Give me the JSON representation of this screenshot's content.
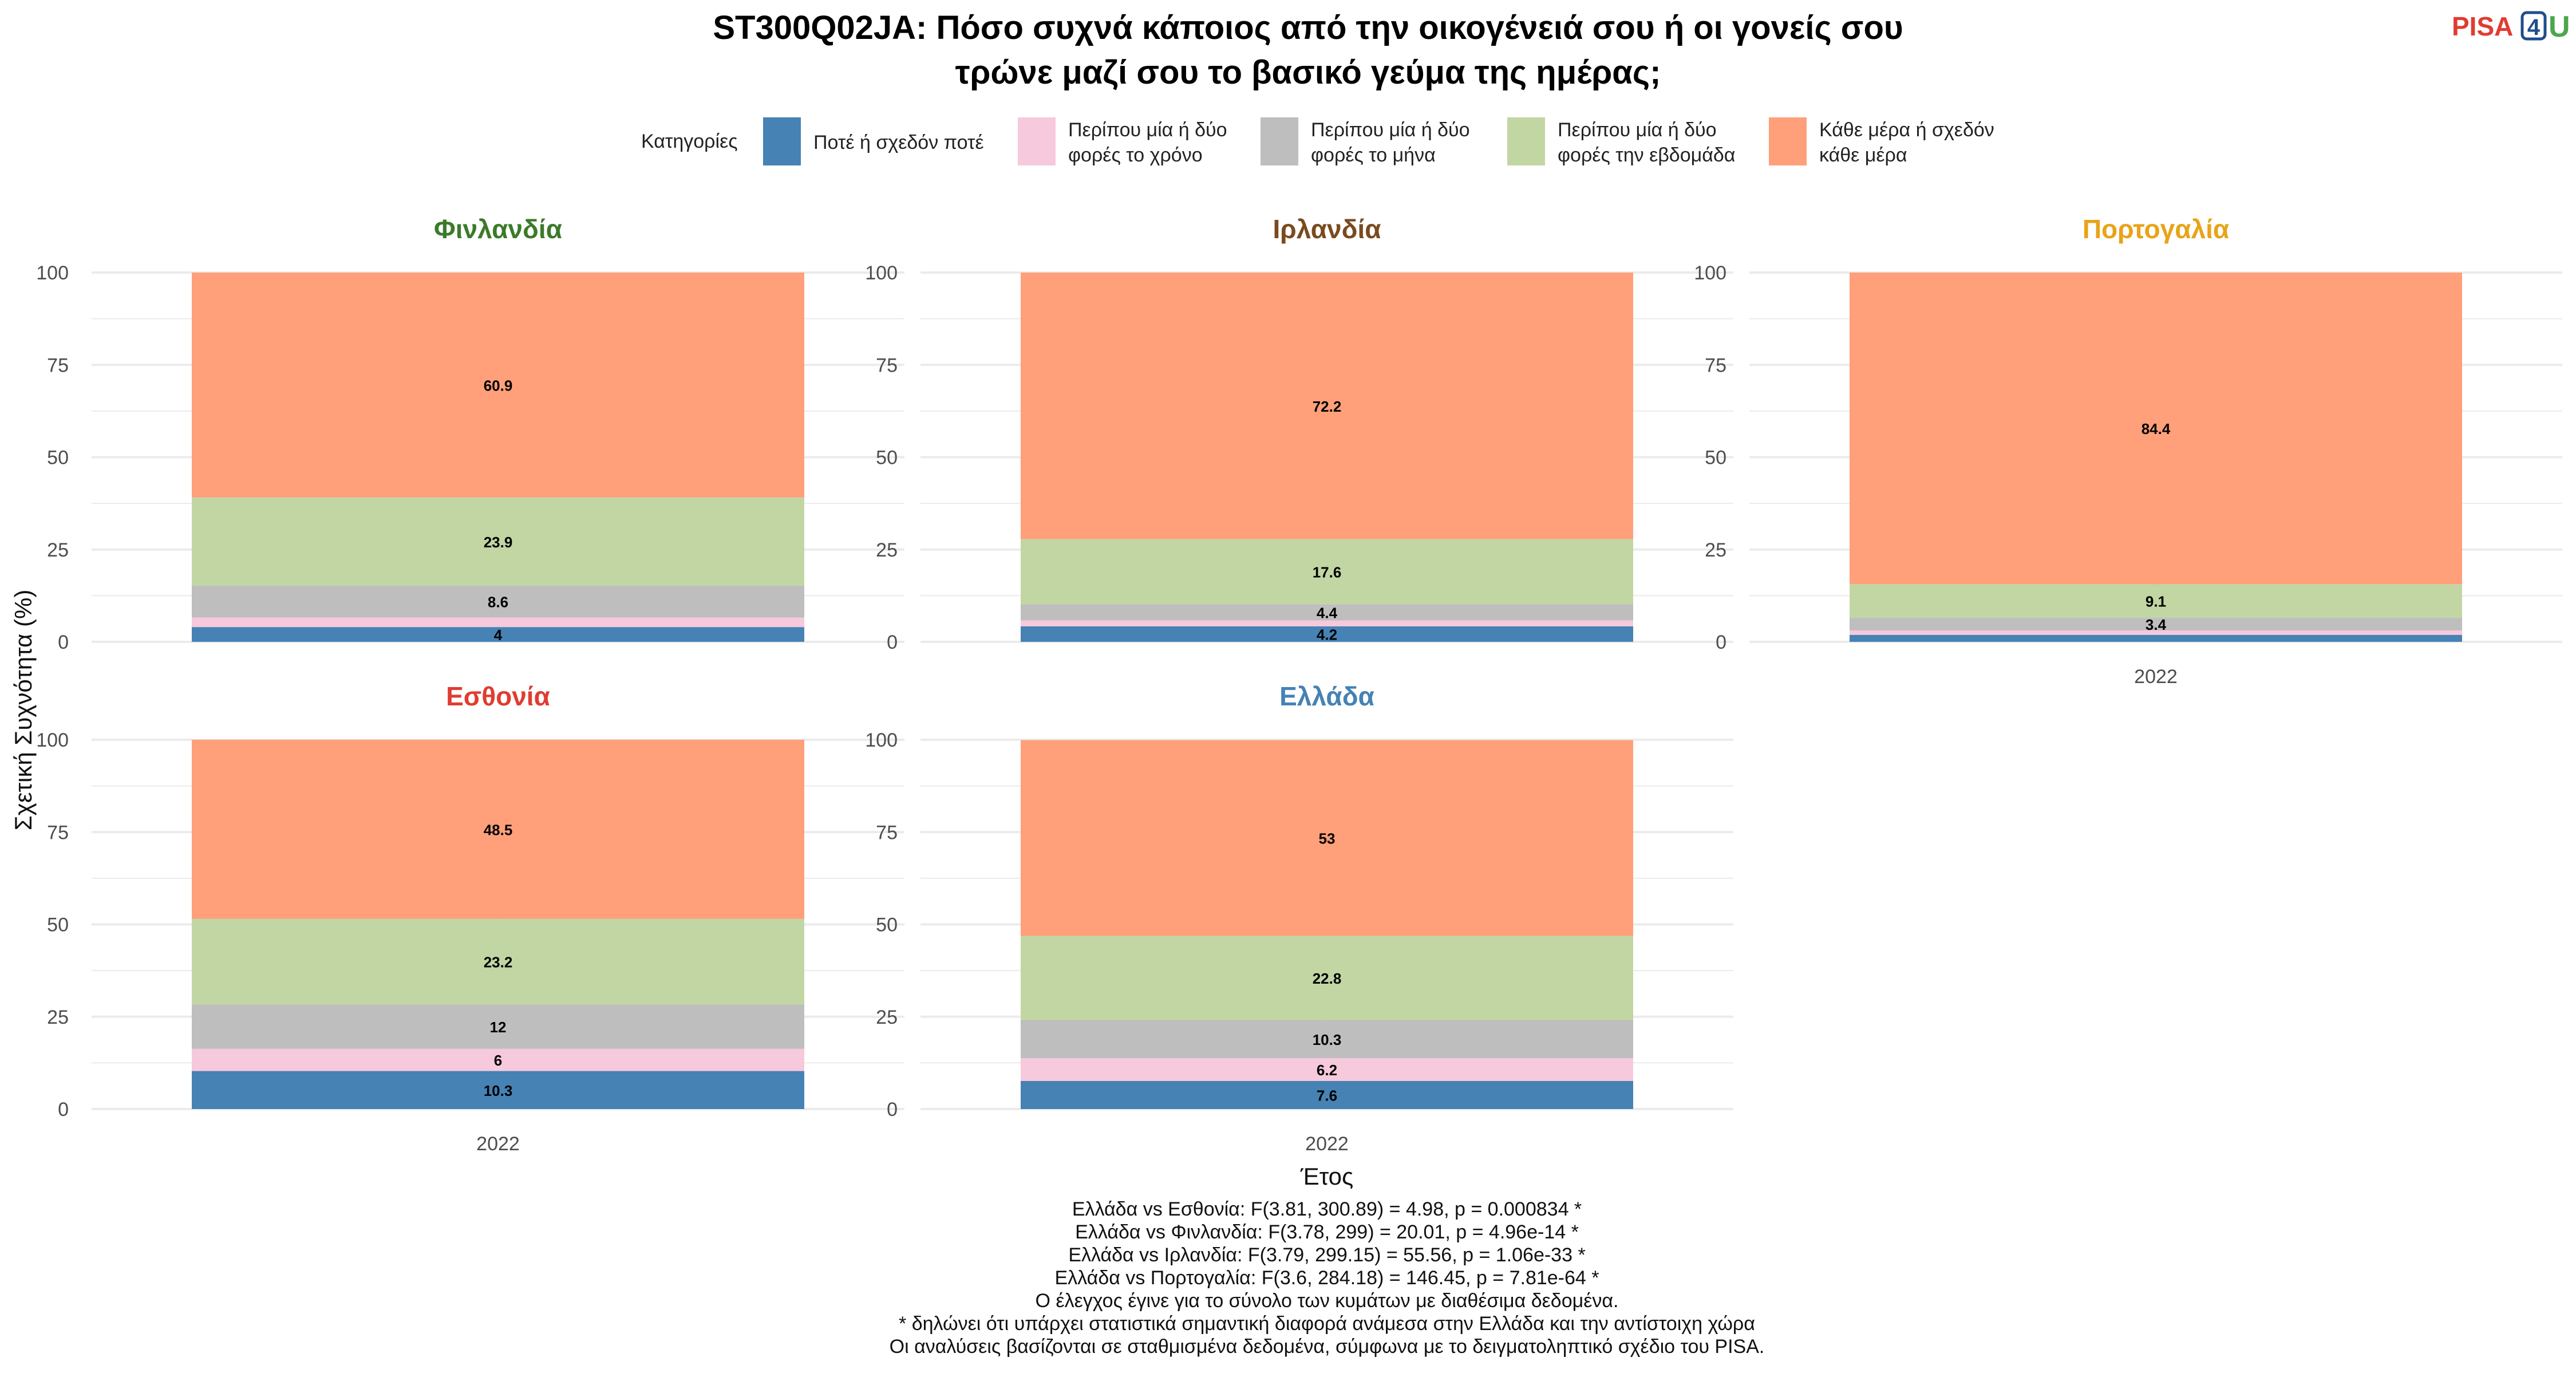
{
  "title_line1": "ST300Q02JA: Πόσο συχνά κάποιος από την οικογένειά σου ή οι γονείς σου",
  "title_line2": "τρώνε μαζί σου το βασικό γεύμα της ημέρας;",
  "logo": {
    "part1": "PISA",
    "part2": "4",
    "part3": "U"
  },
  "legend": {
    "title": "Κατηγορίες",
    "items": [
      {
        "line1": "Ποτέ ή σχεδόν ποτέ",
        "line2": "",
        "color": "#4682B4"
      },
      {
        "line1": "Περίπου μία ή δύο",
        "line2": "φορές το χρόνο",
        "color": "#F6C9DC"
      },
      {
        "line1": "Περίπου μία ή δύο",
        "line2": "φορές το μήνα",
        "color": "#BEBEBE"
      },
      {
        "line1": "Περίπου μία ή δύο",
        "line2": "φορές την εβδομάδα",
        "color": "#C2D6A4"
      },
      {
        "line1": "Κάθε μέρα ή σχεδόν",
        "line2": "κάθε μέρα",
        "color": "#FFA07A"
      }
    ]
  },
  "ylabel": "Σχετική Συχνότητα (%)",
  "xlabel": "Έτος",
  "chart_data": {
    "type": "bar",
    "stacked": true,
    "categories": [
      "2022"
    ],
    "ylim": [
      0,
      100
    ],
    "yticks": [
      0,
      25,
      50,
      75,
      100
    ],
    "series_names": [
      "Ποτέ ή σχεδόν ποτέ",
      "Περίπου μία ή δύο φορές το χρόνο",
      "Περίπου μία ή δύο φορές το μήνα",
      "Περίπου μία ή δύο φορές την εβδομάδα",
      "Κάθε μέρα ή σχεδόν κάθε μέρα"
    ],
    "panels": [
      {
        "name": "Φινλανδία",
        "color": "#3B7A2A",
        "values": [
          4,
          2.6,
          8.6,
          23.9,
          60.9
        ],
        "labels": [
          "4",
          "",
          "8.6",
          "23.9",
          "60.9"
        ]
      },
      {
        "name": "Ιρλανδία",
        "color": "#7A4A1E",
        "values": [
          4.2,
          1.6,
          4.4,
          17.6,
          72.2
        ],
        "labels": [
          "4.2",
          "",
          "4.4",
          "17.6",
          "72.2"
        ]
      },
      {
        "name": "Πορτογαλία",
        "color": "#E8A317",
        "values": [
          1.9,
          1.2,
          3.4,
          9.1,
          84.4
        ],
        "labels": [
          "",
          "",
          "3.4",
          "9.1",
          "84.4"
        ]
      },
      {
        "name": "Εσθονία",
        "color": "#E03C31",
        "values": [
          10.3,
          6,
          12,
          23.2,
          48.5
        ],
        "labels": [
          "10.3",
          "6",
          "12",
          "23.2",
          "48.5"
        ]
      },
      {
        "name": "Ελλάδα",
        "color": "#4682B4",
        "values": [
          7.6,
          6.2,
          10.3,
          22.8,
          53
        ],
        "labels": [
          "7.6",
          "6.2",
          "10.3",
          "22.8",
          "53"
        ]
      }
    ]
  },
  "footnotes": [
    "Ελλάδα vs Εσθονία: F(3.81, 300.89) = 4.98, p = 0.000834 *",
    "Ελλάδα vs Φινλανδία: F(3.78, 299) = 20.01, p = 4.96e-14 *",
    "Ελλάδα vs Ιρλανδία: F(3.79, 299.15) = 55.56, p = 1.06e-33 *",
    "Ελλάδα vs Πορτογαλία: F(3.6, 284.18) = 146.45, p = 7.81e-64 *",
    "Ο έλεγχος έγινε για το σύνολο των κυμάτων με διαθέσιμα δεδομένα.",
    "* δηλώνει ότι υπάρχει στατιστικά σημαντική διαφορά ανάμεσα στην Ελλάδα και την αντίστοιχη χώρα",
    "Οι αναλύσεις βασίζονται σε σταθμισμένα δεδομένα, σύμφωνα με το δειγματοληπτικό σχέδιο του PISA."
  ]
}
